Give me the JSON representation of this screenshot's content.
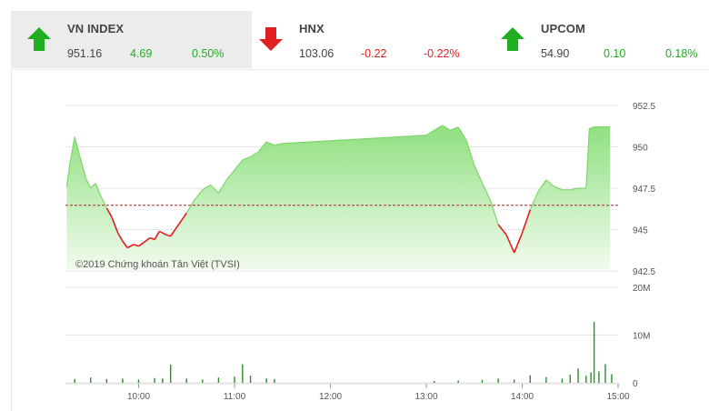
{
  "indices": [
    {
      "name": "VN INDEX",
      "price": "951.16",
      "change": "4.69",
      "percent": "0.50%",
      "direction": "up",
      "active": true
    },
    {
      "name": "HNX",
      "price": "103.06",
      "change": "-0.22",
      "percent": "-0.22%",
      "direction": "down",
      "active": false
    },
    {
      "name": "UPCOM",
      "price": "54.90",
      "change": "0.10",
      "percent": "0.18%",
      "direction": "up",
      "active": false
    }
  ],
  "colors": {
    "up": "#1fae1f",
    "down": "#e02020",
    "area_top": "#8fe07f",
    "area_bottom": "#f2fbef",
    "reference": "#b02020",
    "volume": "#2e8b2e"
  },
  "copyright": "©2019 Chứng khoán Tân Việt (TVSI)",
  "chart_data": [
    {
      "type": "area",
      "reference": 946.47,
      "ylim": [
        942.5,
        952.5
      ],
      "yticks": [
        "952.5",
        "950",
        "947.5",
        "945",
        "942.5"
      ],
      "x": [
        "9:15",
        "9:17",
        "9:20",
        "9:23",
        "9:27",
        "9:30",
        "9:33",
        "9:36",
        "9:40",
        "9:43",
        "9:47",
        "9:50",
        "9:53",
        "9:57",
        "10:00",
        "10:03",
        "10:07",
        "10:10",
        "10:13",
        "10:17",
        "10:20",
        "10:25",
        "10:30",
        "10:35",
        "10:40",
        "10:45",
        "10:50",
        "10:55",
        "11:00",
        "11:05",
        "11:10",
        "11:15",
        "11:20",
        "11:25",
        "11:30",
        "13:00",
        "13:05",
        "13:10",
        "13:15",
        "13:20",
        "13:25",
        "13:30",
        "13:35",
        "13:40",
        "13:45",
        "13:50",
        "13:55",
        "14:00",
        "14:05",
        "14:10",
        "14:15",
        "14:20",
        "14:25",
        "14:30",
        "14:35",
        "14:40",
        "14:42",
        "14:45",
        "14:50",
        "14:55"
      ],
      "y": [
        947.6,
        949.0,
        950.6,
        949.5,
        948.1,
        947.5,
        947.8,
        947.1,
        946.3,
        945.8,
        944.8,
        944.3,
        943.9,
        944.1,
        944.0,
        944.2,
        944.5,
        944.4,
        944.9,
        944.7,
        944.6,
        945.3,
        946.0,
        946.8,
        947.4,
        947.7,
        947.2,
        948.0,
        948.6,
        949.2,
        949.4,
        949.7,
        950.3,
        950.1,
        950.2,
        950.7,
        951.0,
        951.3,
        951.0,
        951.2,
        950.4,
        948.9,
        947.8,
        946.8,
        945.3,
        944.7,
        943.6,
        944.8,
        946.2,
        947.3,
        948.0,
        947.6,
        947.4,
        947.4,
        947.5,
        947.5,
        951.1,
        951.2,
        951.2,
        951.2
      ]
    },
    {
      "type": "bar",
      "ylim": [
        0,
        20000000
      ],
      "yticks": [
        "20M",
        "10M",
        "0"
      ],
      "x_ticks": [
        "10:00",
        "11:00",
        "12:00",
        "13:00",
        "14:00",
        "15:00"
      ],
      "x": [
        "9:20",
        "9:30",
        "9:40",
        "9:50",
        "10:00",
        "10:10",
        "10:15",
        "10:20",
        "10:30",
        "10:40",
        "10:50",
        "11:00",
        "11:05",
        "11:10",
        "11:20",
        "11:25",
        "13:05",
        "13:20",
        "13:35",
        "13:45",
        "13:55",
        "14:05",
        "14:15",
        "14:25",
        "14:30",
        "14:35",
        "14:40",
        "14:43",
        "14:45",
        "14:48",
        "14:52",
        "14:56"
      ],
      "values": [
        800000,
        1100000,
        800000,
        900000,
        700000,
        1000000,
        900000,
        3800000,
        900000,
        700000,
        1100000,
        1300000,
        3900000,
        1500000,
        900000,
        800000,
        400000,
        500000,
        600000,
        900000,
        700000,
        1600000,
        1200000,
        900000,
        1700000,
        3000000,
        1500000,
        2200000,
        12800000,
        2400000,
        3900000,
        1800000
      ]
    }
  ]
}
